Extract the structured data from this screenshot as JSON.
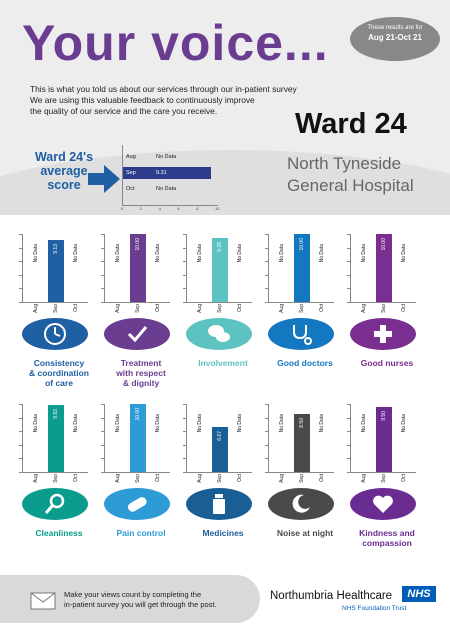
{
  "header": {
    "title": "Your voice...",
    "period_line1": "These results are for",
    "period_line2": "Aug 21-Oct 21",
    "intro_line1": "This is what you told us about our services through our in-patient survey",
    "intro_line2": "We are using this valuable feedback to continuously improve",
    "intro_line3": "the quality of our service and the care you receive.",
    "ward": "Ward 24",
    "hospital_line1": "North Tyneside",
    "hospital_line2": "General Hospital"
  },
  "average": {
    "label_line1": "Ward 24's",
    "label_line2": "average",
    "label_line3": "score",
    "chart_data": {
      "type": "bar",
      "orientation": "horizontal",
      "categories": [
        "Aug",
        "Sep",
        "Oct"
      ],
      "values": [
        null,
        9.31,
        null
      ],
      "value_labels": [
        "No Data",
        "9.31",
        "No Data"
      ],
      "xlim": [
        0,
        10
      ],
      "xticks": [
        "0",
        "2",
        "4",
        "6",
        "8",
        "10"
      ],
      "bar_color": "#2d3d8c"
    }
  },
  "categories": [
    {
      "name": "Consistency & coordination of care",
      "label_lines": [
        "Consistency",
        "& coordination",
        "of care"
      ],
      "color": "#1f5fa3",
      "icon": "clock-icon",
      "chart_data": {
        "type": "bar",
        "categories": [
          "Aug",
          "Sep",
          "Oct"
        ],
        "values": [
          null,
          9.13,
          null
        ],
        "value_labels": [
          "No Data",
          "9.13",
          "No Data"
        ],
        "ylim": [
          0,
          10
        ]
      }
    },
    {
      "name": "Treatment with respect & dignity",
      "label_lines": [
        "Treatment",
        "with respect",
        "& dignity"
      ],
      "color": "#6b3d91",
      "icon": "checkmark-icon",
      "chart_data": {
        "type": "bar",
        "categories": [
          "Aug",
          "Sep",
          "Oct"
        ],
        "values": [
          null,
          10.0,
          null
        ],
        "value_labels": [
          "No Data",
          "10.00",
          "No Data"
        ],
        "ylim": [
          0,
          10
        ]
      }
    },
    {
      "name": "Involvement",
      "label_lines": [
        "Involvement"
      ],
      "color": "#5cc3c0",
      "icon": "speech-bubbles-icon",
      "chart_data": {
        "type": "bar",
        "categories": [
          "Aug",
          "Sep",
          "Oct"
        ],
        "values": [
          null,
          9.35,
          null
        ],
        "value_labels": [
          "No Data",
          "9.35",
          "No Data"
        ],
        "ylim": [
          0,
          10
        ]
      }
    },
    {
      "name": "Good doctors",
      "label_lines": [
        "Good doctors"
      ],
      "color": "#1478c0",
      "icon": "stethoscope-icon",
      "chart_data": {
        "type": "bar",
        "categories": [
          "Aug",
          "Sep",
          "Oct"
        ],
        "values": [
          null,
          10.0,
          null
        ],
        "value_labels": [
          "No Data",
          "10.00",
          "No Data"
        ],
        "ylim": [
          0,
          10
        ]
      }
    },
    {
      "name": "Good nurses",
      "label_lines": [
        "Good nurses"
      ],
      "color": "#7a2e8f",
      "icon": "medical-cross-icon",
      "chart_data": {
        "type": "bar",
        "categories": [
          "Aug",
          "Sep",
          "Oct"
        ],
        "values": [
          null,
          10.0,
          null
        ],
        "value_labels": [
          "No Data",
          "10.00",
          "No Data"
        ],
        "ylim": [
          0,
          10
        ]
      }
    },
    {
      "name": "Cleanliness",
      "label_lines": [
        "Cleanliness"
      ],
      "color": "#0a9c8c",
      "icon": "magnifier-icon",
      "chart_data": {
        "type": "bar",
        "categories": [
          "Aug",
          "Sep",
          "Oct"
        ],
        "values": [
          null,
          9.82,
          null
        ],
        "value_labels": [
          "No Data",
          "9.82",
          "No Data"
        ],
        "ylim": [
          0,
          10
        ]
      }
    },
    {
      "name": "Pain control",
      "label_lines": [
        "Pain control"
      ],
      "color": "#2d9bd6",
      "icon": "pill-icon",
      "chart_data": {
        "type": "bar",
        "categories": [
          "Aug",
          "Sep",
          "Oct"
        ],
        "values": [
          null,
          10.0,
          null
        ],
        "value_labels": [
          "No Data",
          "10.00",
          "No Data"
        ],
        "ylim": [
          0,
          10
        ]
      }
    },
    {
      "name": "Medicines",
      "label_lines": [
        "Medicines"
      ],
      "color": "#1a5e96",
      "icon": "medicine-bottle-icon",
      "chart_data": {
        "type": "bar",
        "categories": [
          "Aug",
          "Sep",
          "Oct"
        ],
        "values": [
          null,
          6.67,
          null
        ],
        "value_labels": [
          "No Data",
          "6.67",
          "No Data"
        ],
        "ylim": [
          0,
          10
        ]
      }
    },
    {
      "name": "Noise at night",
      "label_lines": [
        "Noise at night"
      ],
      "color": "#4a4a4a",
      "icon": "moon-icon",
      "chart_data": {
        "type": "bar",
        "categories": [
          "Aug",
          "Sep",
          "Oct"
        ],
        "values": [
          null,
          8.5,
          null
        ],
        "value_labels": [
          "No Data",
          "8.50",
          "No Data"
        ],
        "ylim": [
          0,
          10
        ]
      }
    },
    {
      "name": "Kindness and compassion",
      "label_lines": [
        "Kindness and",
        "compassion"
      ],
      "color": "#6b2c91",
      "icon": "heart-icon",
      "chart_data": {
        "type": "bar",
        "categories": [
          "Aug",
          "Sep",
          "Oct"
        ],
        "values": [
          null,
          9.5,
          null
        ],
        "value_labels": [
          "No Data",
          "9.50",
          "No Data"
        ],
        "ylim": [
          0,
          10
        ]
      }
    }
  ],
  "footer": {
    "line1": "Make your views count by completing the",
    "line2": "in-patient survey you will get through the post.",
    "org": "Northumbria Healthcare",
    "nhs": "NHS",
    "trust": "NHS Foundation Trust",
    "icon": "envelope-icon"
  }
}
